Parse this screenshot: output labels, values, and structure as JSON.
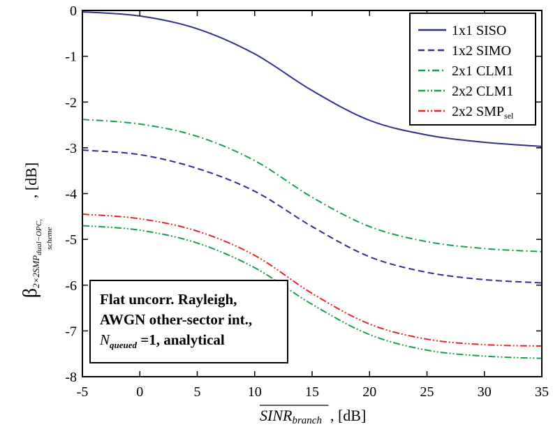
{
  "chart_data": {
    "type": "line",
    "xlim": [
      -5,
      35
    ],
    "ylim": [
      -8,
      0
    ],
    "x_ticks": [
      -5,
      0,
      5,
      10,
      15,
      20,
      25,
      30,
      35
    ],
    "y_ticks": [
      0,
      -1,
      -2,
      -3,
      -4,
      -5,
      -6,
      -7,
      -8
    ],
    "x_tick_labels": [
      "-5",
      "0",
      "5",
      "10",
      "15",
      "20",
      "25",
      "30",
      "35"
    ],
    "y_tick_labels": [
      "0",
      "-1",
      "-2",
      "-3",
      "-4",
      "-5",
      "-6",
      "-7",
      "-8"
    ],
    "grid": false,
    "legend_position": "top-right",
    "xlabel": {
      "main": "SINR",
      "sub": "branch",
      "unit": ", [dB]"
    },
    "ylabel": {
      "main": "β",
      "sub1": "2×2SMP",
      "sub1b": "dual−OPC,",
      "sub2": "scheme",
      "unit": ", [dB]"
    },
    "annotation": {
      "line1": "Flat uncorr. Rayleigh,",
      "line2": "AWGN other-sector int.,",
      "line3_var": "N",
      "line3_sub": "queued",
      "line3_rest": " =1, analytical"
    },
    "x": [
      -5,
      0,
      5,
      10,
      15,
      20,
      25,
      30,
      35
    ],
    "series": [
      {
        "name": "1x1 SISO",
        "name_sub": "",
        "color": "#2b2f8f",
        "dash": "solid",
        "values": [
          -0.03,
          -0.12,
          -0.4,
          -0.95,
          -1.75,
          -2.4,
          -2.72,
          -2.88,
          -2.97
        ]
      },
      {
        "name": "1x2 SIMO",
        "name_sub": "",
        "color": "#2b2f8f",
        "dash": "dash",
        "values": [
          -3.05,
          -3.15,
          -3.45,
          -3.95,
          -4.72,
          -5.38,
          -5.72,
          -5.88,
          -5.95
        ]
      },
      {
        "name": "2x1 CLM1",
        "name_sub": "",
        "color": "#16a04c",
        "dash": "dashdot",
        "values": [
          -2.38,
          -2.48,
          -2.75,
          -3.28,
          -4.08,
          -4.72,
          -5.05,
          -5.2,
          -5.27
        ]
      },
      {
        "name": "2x2 CLM1",
        "name_sub": "",
        "color": "#16a04c",
        "dash": "dashdotdot",
        "values": [
          -4.7,
          -4.8,
          -5.08,
          -5.62,
          -6.42,
          -7.08,
          -7.42,
          -7.55,
          -7.6
        ]
      },
      {
        "name": "2x2 SMP",
        "name_sub": "sel",
        "color": "#e8222b",
        "dash": "dashdotdot",
        "values": [
          -4.45,
          -4.55,
          -4.82,
          -5.35,
          -6.18,
          -6.85,
          -7.18,
          -7.3,
          -7.33
        ]
      }
    ]
  }
}
